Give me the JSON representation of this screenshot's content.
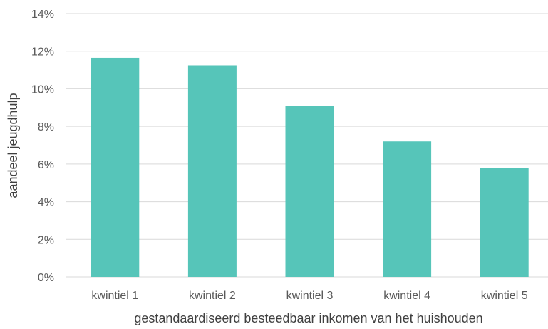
{
  "chart_data": {
    "type": "bar",
    "title": "",
    "xlabel": "gestandaardiseerd besteedbaar inkomen van het huishouden",
    "ylabel": "aandeel jeugdhulp",
    "categories": [
      "kwintiel 1",
      "kwintiel 2",
      "kwintiel 3",
      "kwintiel 4",
      "kwintiel 5"
    ],
    "values": [
      11.65,
      11.25,
      9.1,
      7.2,
      5.8
    ],
    "ylim": [
      0,
      14
    ],
    "yticks": [
      0,
      2,
      4,
      6,
      8,
      10,
      12,
      14
    ],
    "ytick_labels": [
      "0%",
      "2%",
      "4%",
      "6%",
      "8%",
      "10%",
      "12%",
      "14%"
    ],
    "grid": true,
    "legend": "none",
    "bar_color": "#56c5b9"
  }
}
